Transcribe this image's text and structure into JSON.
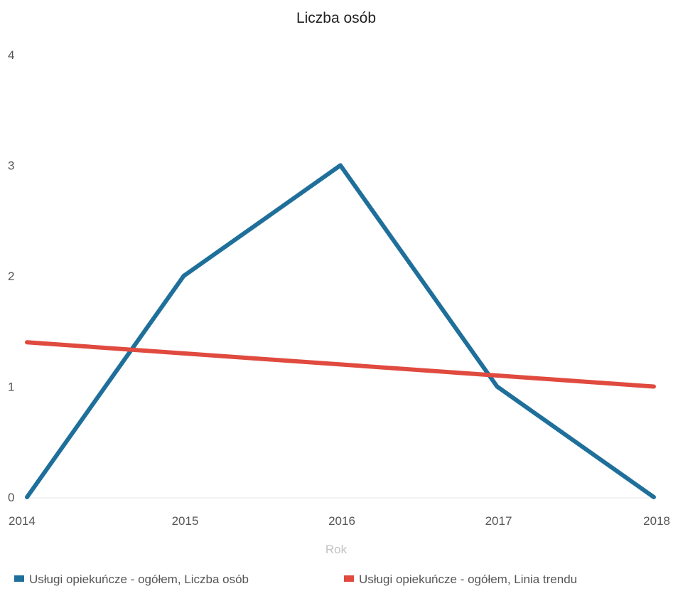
{
  "chart_data": {
    "type": "line",
    "title": "Liczba osób",
    "xlabel": "Rok",
    "ylabel": "",
    "x": [
      "2014",
      "2015",
      "2016",
      "2017",
      "2018"
    ],
    "ylim": [
      0,
      4
    ],
    "yticks": [
      0,
      1,
      2,
      3,
      4
    ],
    "grid": false,
    "legend_position": "bottom-left",
    "series": [
      {
        "name": "Usługi opiekuńcze - ogółem, Liczba osób",
        "values": [
          0,
          2,
          3,
          1,
          0
        ],
        "color": "#1f6f9b"
      },
      {
        "name": "Usługi opiekuńcze - ogółem, Linia trendu",
        "values": [
          1.4,
          1.3,
          1.2,
          1.1,
          1.0
        ],
        "color": "#e04a3f"
      }
    ]
  }
}
